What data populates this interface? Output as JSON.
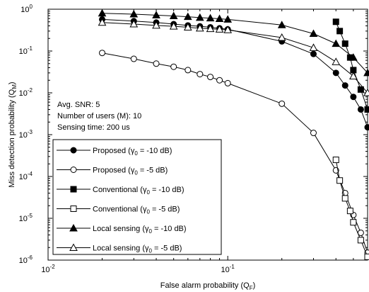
{
  "chart_data": {
    "type": "line",
    "title": "",
    "xlabel": {
      "base": "False alarm probability (Q",
      "sub": "F",
      "tail": ")"
    },
    "ylabel": {
      "base": "Miss detection probability (Q",
      "sub": "M",
      "tail": ")"
    },
    "xscale": "log",
    "yscale": "log",
    "xlim": [
      0.01,
      0.6
    ],
    "ylim": [
      1e-06,
      1
    ],
    "x_ticks": [
      {
        "value": 0.01,
        "base": "10",
        "exp": "-2"
      },
      {
        "value": 0.1,
        "base": "10",
        "exp": "-1"
      }
    ],
    "y_ticks": [
      {
        "value": 1,
        "base": "10",
        "exp": "0"
      },
      {
        "value": 0.1,
        "base": "10",
        "exp": "-1"
      },
      {
        "value": 0.01,
        "base": "10",
        "exp": "-2"
      },
      {
        "value": 0.001,
        "base": "10",
        "exp": "-3"
      },
      {
        "value": 0.0001,
        "base": "10",
        "exp": "-4"
      },
      {
        "value": 1e-05,
        "base": "10",
        "exp": "-5"
      },
      {
        "value": 1e-06,
        "base": "10",
        "exp": "-6"
      }
    ],
    "annotations": [
      "Avg. SNR: 5",
      "Number of users (M): 10",
      "Sensing time: 200 us"
    ],
    "legend_position": "bottom-left",
    "series": [
      {
        "name": {
          "base": "Proposed (",
          "gamma": "γ",
          "sub": "0",
          "tail": " = -10 dB)"
        },
        "marker": "circle",
        "filled": true,
        "x": [
          0.02,
          0.03,
          0.04,
          0.05,
          0.06,
          0.07,
          0.08,
          0.09,
          0.1,
          0.2,
          0.3,
          0.4,
          0.45,
          0.5,
          0.55,
          0.6
        ],
        "y": [
          0.57,
          0.52,
          0.48,
          0.44,
          0.41,
          0.39,
          0.37,
          0.35,
          0.33,
          0.17,
          0.085,
          0.03,
          0.015,
          0.008,
          0.004,
          0.0015
        ]
      },
      {
        "name": {
          "base": "Proposed (",
          "gamma": "γ",
          "sub": "0",
          "tail": " = -5 dB)"
        },
        "marker": "circle",
        "filled": false,
        "x": [
          0.02,
          0.03,
          0.04,
          0.05,
          0.06,
          0.07,
          0.08,
          0.09,
          0.1,
          0.2,
          0.3,
          0.4,
          0.45,
          0.5,
          0.55,
          0.6
        ],
        "y": [
          0.09,
          0.065,
          0.05,
          0.042,
          0.035,
          0.028,
          0.024,
          0.02,
          0.017,
          0.0055,
          0.0011,
          0.00014,
          4e-05,
          1.2e-05,
          4.5e-06,
          1.5e-06
        ]
      },
      {
        "name": {
          "base": "Conventional (",
          "gamma": "γ",
          "sub": "0",
          "tail": " = -10 dB)"
        },
        "marker": "square",
        "filled": true,
        "x": [
          0.4,
          0.42,
          0.45,
          0.48,
          0.5,
          0.55,
          0.6
        ],
        "y": [
          0.5,
          0.3,
          0.15,
          0.07,
          0.035,
          0.012,
          0.004
        ]
      },
      {
        "name": {
          "base": "Conventional (",
          "gamma": "γ",
          "sub": "0",
          "tail": " = -5 dB)"
        },
        "marker": "square",
        "filled": false,
        "x": [
          0.4,
          0.42,
          0.45,
          0.48,
          0.5,
          0.55,
          0.6
        ],
        "y": [
          0.00025,
          8e-05,
          3e-05,
          1.5e-05,
          8e-06,
          3e-06,
          1.2e-06
        ]
      },
      {
        "name": {
          "base": "Local sensing (",
          "gamma": "γ",
          "sub": "0",
          "tail": " = -10 dB)"
        },
        "marker": "triangle",
        "filled": true,
        "x": [
          0.02,
          0.03,
          0.04,
          0.05,
          0.06,
          0.07,
          0.08,
          0.09,
          0.1,
          0.2,
          0.3,
          0.4,
          0.5,
          0.6
        ],
        "y": [
          0.8,
          0.76,
          0.72,
          0.69,
          0.66,
          0.63,
          0.61,
          0.59,
          0.57,
          0.42,
          0.26,
          0.15,
          0.07,
          0.03
        ]
      },
      {
        "name": {
          "base": "Local sensing (",
          "gamma": "γ",
          "sub": "0",
          "tail": " = -5 dB)"
        },
        "marker": "triangle",
        "filled": false,
        "x": [
          0.02,
          0.03,
          0.04,
          0.05,
          0.06,
          0.07,
          0.08,
          0.09,
          0.1,
          0.2,
          0.3,
          0.4,
          0.5,
          0.6
        ],
        "y": [
          0.48,
          0.44,
          0.41,
          0.39,
          0.37,
          0.35,
          0.34,
          0.33,
          0.32,
          0.21,
          0.12,
          0.055,
          0.025,
          0.01
        ]
      }
    ]
  }
}
